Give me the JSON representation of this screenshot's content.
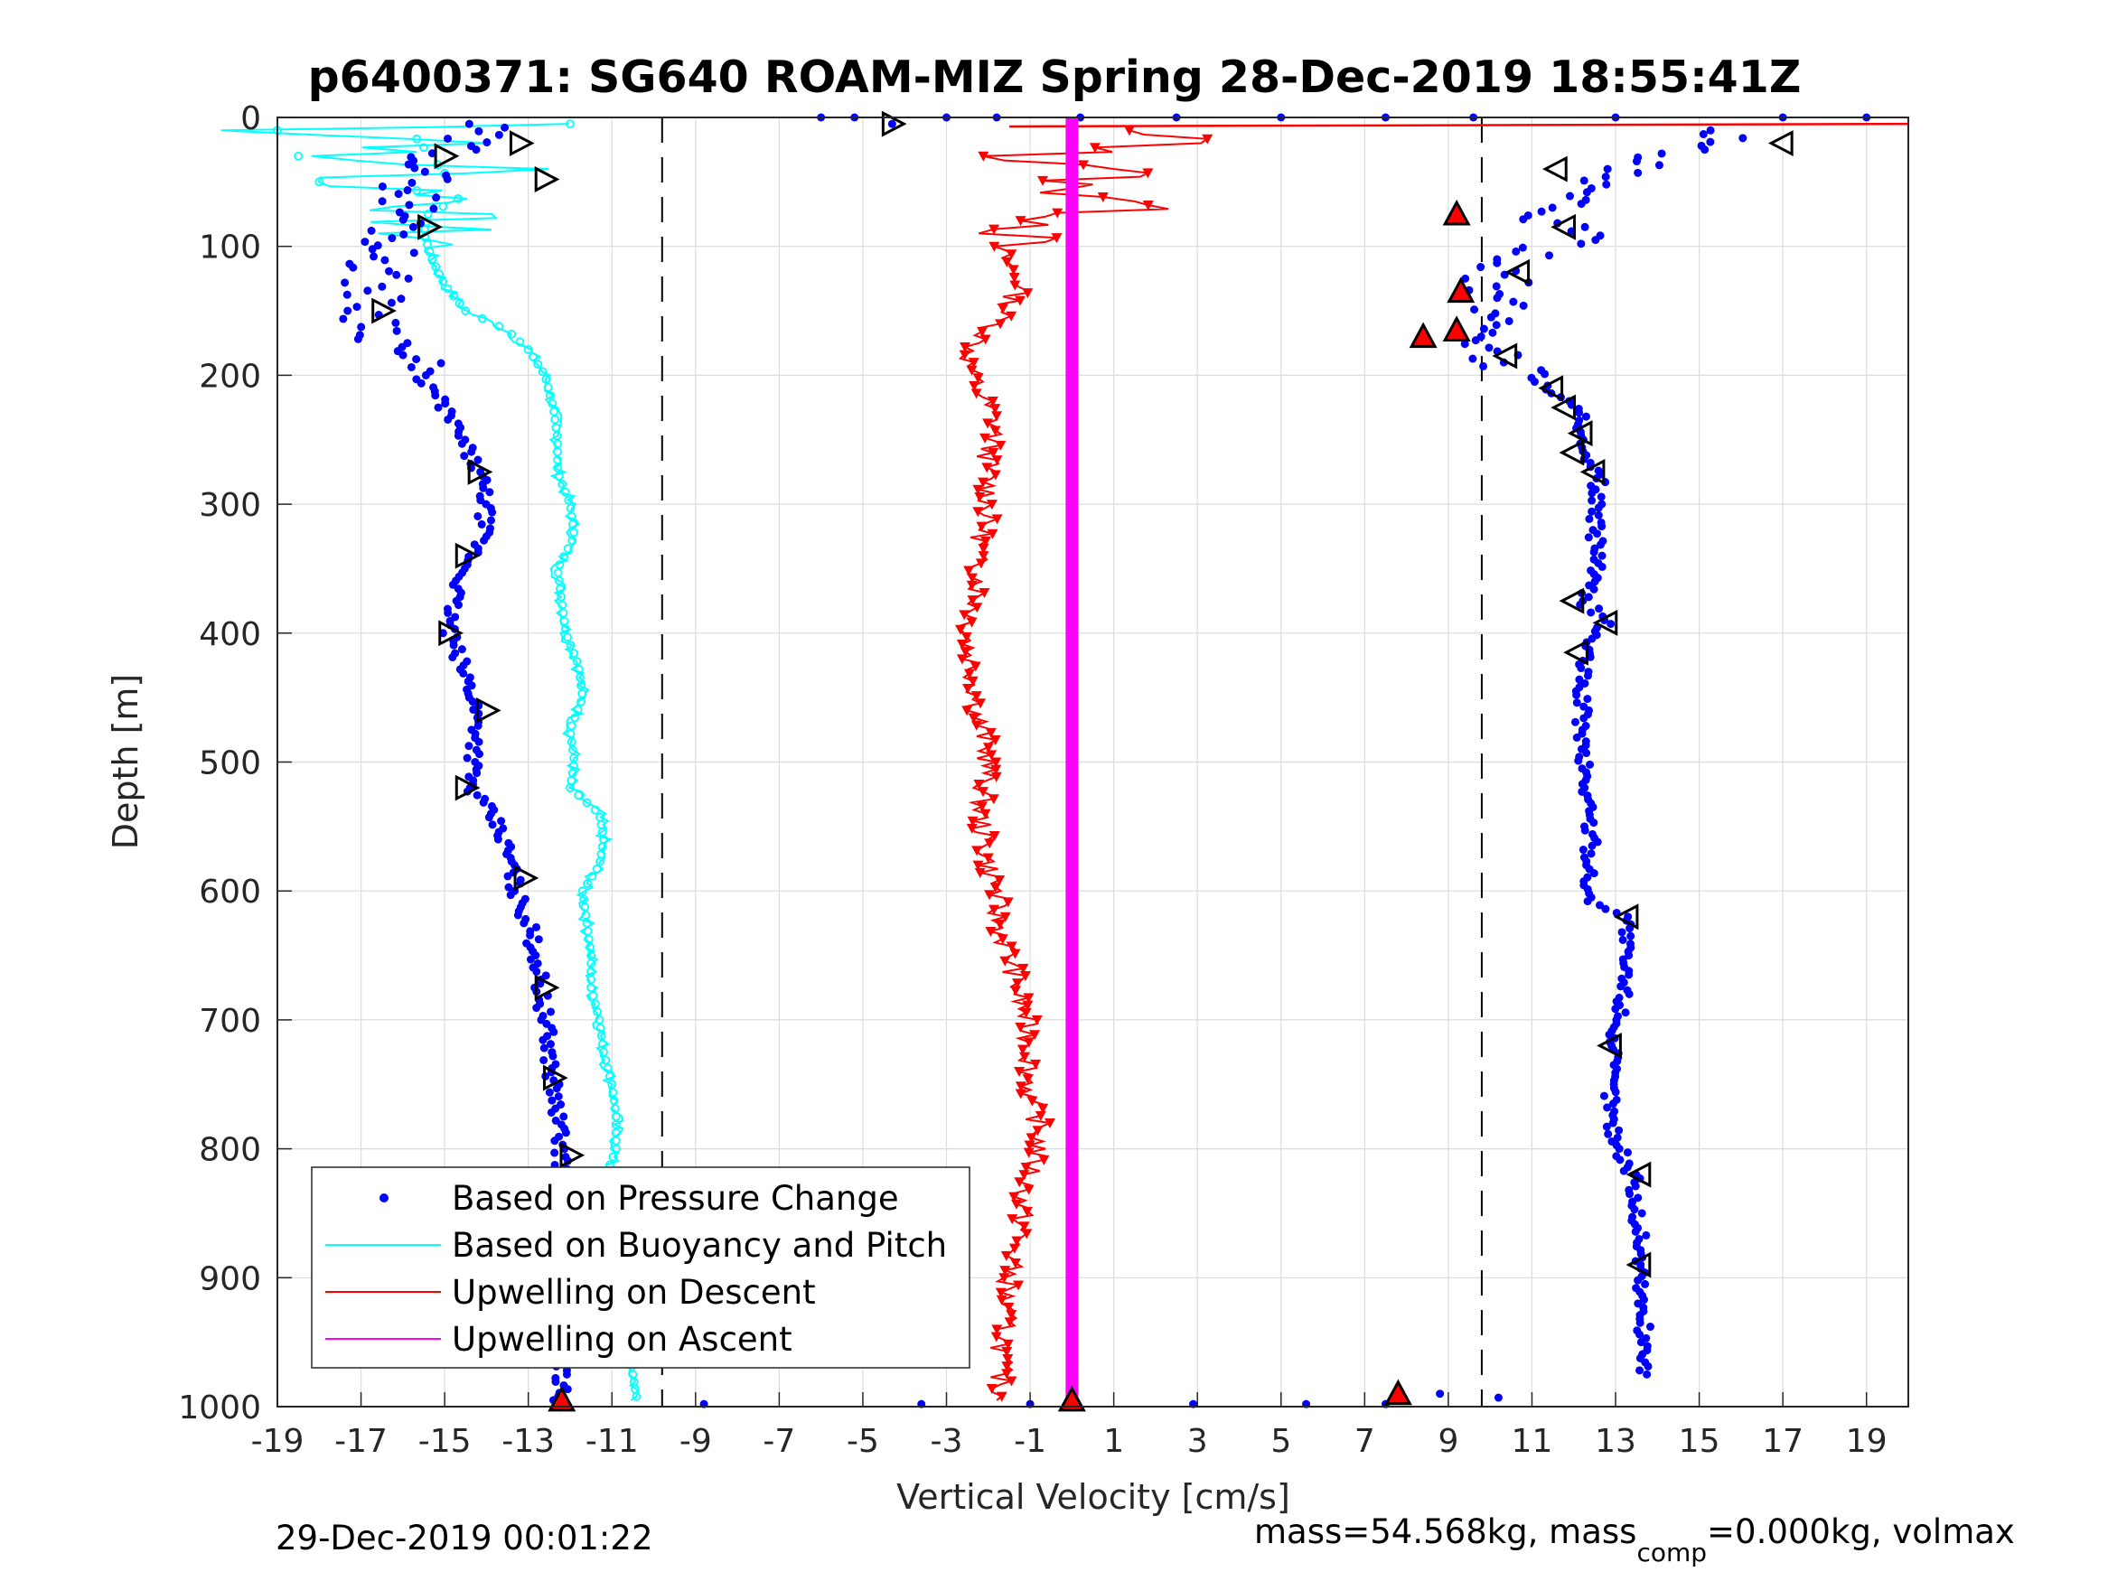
{
  "chart_data": {
    "type": "scatter",
    "title": "p6400371: SG640 ROAM-MIZ Spring 28-Dec-2019 18:55:41Z",
    "xlabel": "Vertical Velocity [cm/s]",
    "ylabel": "Depth [m]",
    "xlim": [
      -19,
      20
    ],
    "ylim": [
      0,
      1000
    ],
    "y_reversed": true,
    "grid": true,
    "legend_position": "bottom-left",
    "x_ticks": [
      "-19",
      "-17",
      "-15",
      "-13",
      "-11",
      "-9",
      "-7",
      "-5",
      "-3",
      "-1",
      "1",
      "3",
      "5",
      "7",
      "9",
      "11",
      "13",
      "15",
      "17",
      "19"
    ],
    "y_ticks": [
      "0",
      "100",
      "200",
      "300",
      "400",
      "500",
      "600",
      "700",
      "800",
      "900",
      "1000"
    ],
    "reference_lines": [
      {
        "style": "dashed",
        "x": -9.8
      },
      {
        "style": "dashed",
        "x": 9.8
      }
    ],
    "series": [
      {
        "name": "Based on Pressure Change",
        "color": "#0000ff",
        "marker": "dot",
        "profiles": [
          {
            "cast": "descent",
            "points": [
              [
                -14.2,
                5
              ],
              [
                -14.8,
                25
              ],
              [
                -15.6,
                45
              ],
              [
                -15.8,
                65
              ],
              [
                -16.0,
                85
              ],
              [
                -16.4,
                105
              ],
              [
                -16.6,
                125
              ],
              [
                -16.8,
                150
              ],
              [
                -16.2,
                175
              ],
              [
                -15.6,
                200
              ],
              [
                -15.0,
                225
              ],
              [
                -14.6,
                250
              ],
              [
                -14.2,
                275
              ],
              [
                -14.0,
                300
              ],
              [
                -14.1,
                325
              ],
              [
                -14.5,
                350
              ],
              [
                -14.8,
                375
              ],
              [
                -14.9,
                400
              ],
              [
                -14.6,
                425
              ],
              [
                -14.3,
                450
              ],
              [
                -14.2,
                475
              ],
              [
                -14.3,
                500
              ],
              [
                -14.4,
                520
              ],
              [
                -13.9,
                540
              ],
              [
                -13.6,
                560
              ],
              [
                -13.4,
                580
              ],
              [
                -13.3,
                600
              ],
              [
                -13.0,
                625
              ],
              [
                -12.8,
                650
              ],
              [
                -12.7,
                675
              ],
              [
                -12.6,
                700
              ],
              [
                -12.5,
                725
              ],
              [
                -12.4,
                750
              ],
              [
                -12.3,
                775
              ],
              [
                -12.2,
                800
              ],
              [
                -12.2,
                825
              ],
              [
                -12.2,
                850
              ],
              [
                -12.2,
                875
              ],
              [
                -12.2,
                900
              ],
              [
                -12.2,
                925
              ],
              [
                -12.2,
                950
              ],
              [
                -12.2,
                975
              ],
              [
                -12.2,
                995
              ]
            ]
          },
          {
            "cast": "ascent",
            "points": [
              [
                16.0,
                10
              ],
              [
                14.5,
                25
              ],
              [
                13.0,
                40
              ],
              [
                12.0,
                55
              ],
              [
                11.5,
                70
              ],
              [
                11.5,
                85
              ],
              [
                12.0,
                95
              ],
              [
                10.8,
                110
              ],
              [
                10.2,
                125
              ],
              [
                10.0,
                140
              ],
              [
                10.2,
                155
              ],
              [
                10.0,
                170
              ],
              [
                10.2,
                190
              ],
              [
                11.2,
                205
              ],
              [
                11.8,
                220
              ],
              [
                12.3,
                235
              ],
              [
                12.1,
                250
              ],
              [
                12.2,
                265
              ],
              [
                12.6,
                280
              ],
              [
                12.5,
                300
              ],
              [
                12.5,
                320
              ],
              [
                12.6,
                340
              ],
              [
                12.4,
                360
              ],
              [
                12.2,
                375
              ],
              [
                12.8,
                390
              ],
              [
                12.3,
                410
              ],
              [
                12.2,
                430
              ],
              [
                12.2,
                460
              ],
              [
                12.2,
                490
              ],
              [
                12.3,
                520
              ],
              [
                12.4,
                550
              ],
              [
                12.4,
                580
              ],
              [
                12.3,
                605
              ],
              [
                13.3,
                620
              ],
              [
                13.2,
                650
              ],
              [
                13.2,
                680
              ],
              [
                13.1,
                700
              ],
              [
                12.9,
                720
              ],
              [
                12.9,
                750
              ],
              [
                12.9,
                780
              ],
              [
                13.1,
                800
              ],
              [
                13.4,
                820
              ],
              [
                13.5,
                850
              ],
              [
                13.6,
                870
              ],
              [
                13.6,
                890
              ],
              [
                13.6,
                920
              ],
              [
                13.7,
                950
              ],
              [
                13.7,
                975
              ]
            ]
          }
        ],
        "surface_points": [
          [
            -6.0,
            0
          ],
          [
            -5.2,
            0
          ],
          [
            -4.3,
            5
          ],
          [
            -3.0,
            0
          ],
          [
            -1.8,
            0
          ],
          [
            0.2,
            0
          ],
          [
            2.5,
            0
          ],
          [
            5.0,
            0
          ],
          [
            7.5,
            0
          ],
          [
            9.6,
            0
          ],
          [
            13.0,
            0
          ],
          [
            17.0,
            0
          ],
          [
            19.0,
            0
          ]
        ],
        "bottom_points": [
          [
            -12.4,
            995
          ],
          [
            -8.8,
            998
          ],
          [
            -3.6,
            998
          ],
          [
            -1.0,
            998
          ],
          [
            2.9,
            998
          ],
          [
            5.6,
            998
          ],
          [
            7.5,
            998
          ],
          [
            8.8,
            990
          ],
          [
            10.2,
            993
          ]
        ]
      },
      {
        "name": "Based on Buoyancy and Pitch",
        "color": "#00ffff",
        "marker": "open-circle-line",
        "points": [
          [
            -12.0,
            5
          ],
          [
            -19.0,
            10
          ],
          [
            -14.0,
            20
          ],
          [
            -18.5,
            30
          ],
          [
            -13.5,
            40
          ],
          [
            -18.0,
            50
          ],
          [
            -14.5,
            60
          ],
          [
            -15.4,
            75
          ],
          [
            -15.5,
            90
          ],
          [
            -15.3,
            110
          ],
          [
            -15.0,
            130
          ],
          [
            -14.5,
            150
          ],
          [
            -13.5,
            165
          ],
          [
            -13.0,
            180
          ],
          [
            -12.6,
            200
          ],
          [
            -12.4,
            225
          ],
          [
            -12.3,
            250
          ],
          [
            -12.3,
            275
          ],
          [
            -12.0,
            300
          ],
          [
            -11.9,
            325
          ],
          [
            -12.3,
            350
          ],
          [
            -12.2,
            375
          ],
          [
            -12.1,
            400
          ],
          [
            -11.8,
            425
          ],
          [
            -11.7,
            450
          ],
          [
            -12.0,
            475
          ],
          [
            -11.9,
            500
          ],
          [
            -12.0,
            520
          ],
          [
            -11.3,
            540
          ],
          [
            -11.2,
            560
          ],
          [
            -11.3,
            580
          ],
          [
            -11.7,
            600
          ],
          [
            -11.6,
            625
          ],
          [
            -11.5,
            650
          ],
          [
            -11.5,
            675
          ],
          [
            -11.3,
            700
          ],
          [
            -11.2,
            725
          ],
          [
            -11.0,
            750
          ],
          [
            -10.9,
            775
          ],
          [
            -10.9,
            800
          ],
          [
            -11.2,
            825
          ],
          [
            -11.2,
            850
          ],
          [
            -11.0,
            875
          ],
          [
            -10.8,
            900
          ],
          [
            -10.6,
            925
          ],
          [
            -10.6,
            950
          ],
          [
            -10.5,
            975
          ],
          [
            -10.4,
            995
          ]
        ]
      },
      {
        "name": "Upwelling on Descent",
        "color": "#ff0000",
        "marker": "down-triangle-line",
        "surface_line": [
          [
            -1.5,
            7
          ],
          [
            20,
            5
          ]
        ],
        "points": [
          [
            0.8,
            10
          ],
          [
            3.0,
            20
          ],
          [
            -1.5,
            30
          ],
          [
            1.5,
            40
          ],
          [
            -0.5,
            55
          ],
          [
            2.0,
            65
          ],
          [
            -0.2,
            80
          ],
          [
            -1.2,
            90
          ],
          [
            -1.8,
            100
          ],
          [
            -1.5,
            115
          ],
          [
            -1.2,
            130
          ],
          [
            -1.5,
            145
          ],
          [
            -1.8,
            160
          ],
          [
            -2.3,
            175
          ],
          [
            -2.5,
            190
          ],
          [
            -2.3,
            205
          ],
          [
            -2.1,
            220
          ],
          [
            -1.8,
            240
          ],
          [
            -2.0,
            260
          ],
          [
            -2.0,
            280
          ],
          [
            -2.0,
            300
          ],
          [
            -2.1,
            320
          ],
          [
            -2.3,
            340
          ],
          [
            -2.2,
            360
          ],
          [
            -2.3,
            380
          ],
          [
            -2.5,
            400
          ],
          [
            -2.4,
            420
          ],
          [
            -2.3,
            440
          ],
          [
            -2.3,
            460
          ],
          [
            -2.1,
            480
          ],
          [
            -2.0,
            500
          ],
          [
            -2.1,
            520
          ],
          [
            -2.2,
            540
          ],
          [
            -2.1,
            560
          ],
          [
            -2.0,
            580
          ],
          [
            -1.8,
            600
          ],
          [
            -1.8,
            620
          ],
          [
            -1.6,
            640
          ],
          [
            -1.4,
            660
          ],
          [
            -1.3,
            680
          ],
          [
            -1.1,
            700
          ],
          [
            -1.0,
            720
          ],
          [
            -1.0,
            740
          ],
          [
            -1.0,
            760
          ],
          [
            -0.8,
            780
          ],
          [
            -0.8,
            800
          ],
          [
            -1.0,
            820
          ],
          [
            -1.2,
            840
          ],
          [
            -1.2,
            860
          ],
          [
            -1.4,
            880
          ],
          [
            -1.5,
            900
          ],
          [
            -1.6,
            920
          ],
          [
            -1.6,
            940
          ],
          [
            -1.7,
            960
          ],
          [
            -1.7,
            980
          ],
          [
            -1.7,
            995
          ]
        ]
      },
      {
        "name": "Upwelling on Ascent",
        "color": "#ff00ff",
        "marker": "line",
        "points": [
          [
            0.0,
            0
          ],
          [
            0.0,
            1000
          ]
        ]
      }
    ],
    "open_triangle_markers": [
      [
        -4.3,
        5
      ],
      [
        -15.0,
        30
      ],
      [
        -13.2,
        20
      ],
      [
        -12.6,
        48
      ],
      [
        -15.4,
        85
      ],
      [
        -16.5,
        150
      ],
      [
        -14.2,
        275
      ],
      [
        -14.5,
        340
      ],
      [
        -14.9,
        400
      ],
      [
        -14.0,
        460
      ],
      [
        -14.5,
        520
      ],
      [
        -13.1,
        590
      ],
      [
        -12.6,
        675
      ],
      [
        -12.4,
        745
      ],
      [
        -12.0,
        805
      ],
      [
        -12.3,
        900
      ],
      [
        17.0,
        20
      ],
      [
        11.6,
        40
      ],
      [
        11.8,
        85
      ],
      [
        10.7,
        120
      ],
      [
        10.4,
        185
      ],
      [
        11.5,
        210
      ],
      [
        11.8,
        225
      ],
      [
        12.2,
        245
      ],
      [
        12.0,
        260
      ],
      [
        12.5,
        275
      ],
      [
        12.0,
        375
      ],
      [
        12.8,
        392
      ],
      [
        12.1,
        415
      ],
      [
        13.3,
        620
      ],
      [
        12.9,
        720
      ],
      [
        13.6,
        820
      ],
      [
        13.6,
        890
      ]
    ],
    "filled_triangle_markers": [
      [
        -12.2,
        995
      ],
      [
        8.4,
        170
      ],
      [
        9.2,
        75
      ],
      [
        9.3,
        135
      ],
      [
        9.2,
        165
      ],
      [
        7.8,
        990
      ],
      [
        0.0,
        995
      ]
    ]
  },
  "legend": {
    "items": [
      {
        "label": "Based on Pressure Change",
        "color": "#0000ff",
        "marker": "dot"
      },
      {
        "label": "Based on Buoyancy and Pitch",
        "color": "#00ffff",
        "marker": "line"
      },
      {
        "label": "Upwelling on Descent",
        "color": "#ff0000",
        "marker": "line"
      },
      {
        "label": "Upwelling on Ascent",
        "color": "#ff00ff",
        "marker": "line"
      }
    ]
  },
  "footer": {
    "timestamp": "29-Dec-2019 00:01:22",
    "mass_text": "mass=54.568kg, mass",
    "mass_sub": "comp",
    "mass_tail": "=0.000kg, volmax"
  }
}
